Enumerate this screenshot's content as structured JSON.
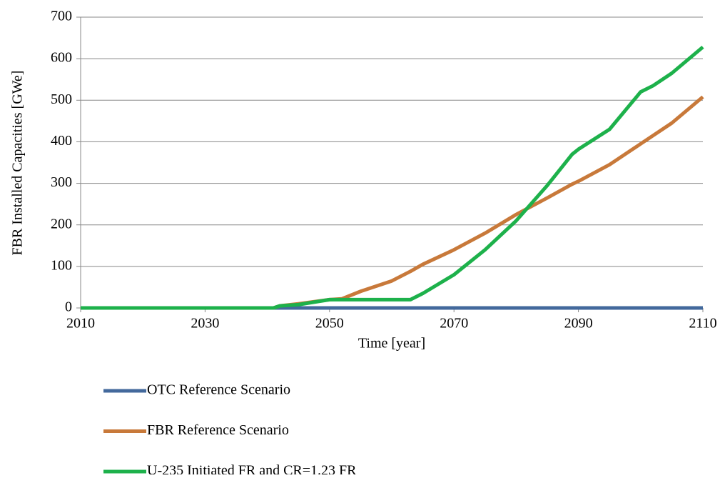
{
  "chart_data": {
    "type": "line",
    "ylabel": "FBR Installed Capacities [GWe]",
    "xlabel": "Time [year]",
    "x": [
      2010,
      2041,
      2042,
      2045,
      2050,
      2052,
      2055,
      2060,
      2063,
      2065,
      2070,
      2075,
      2080,
      2085,
      2089,
      2090,
      2095,
      2100,
      2102,
      2105,
      2110
    ],
    "series": [
      {
        "name": "OTC Reference Scenario",
        "color": "#43699c",
        "values": [
          0,
          0,
          0,
          0,
          0,
          0,
          0,
          0,
          0,
          0,
          0,
          0,
          0,
          0,
          0,
          0,
          0,
          0,
          0,
          0,
          0
        ]
      },
      {
        "name": "FBR Reference Scenario",
        "color": "#c8793a",
        "values": [
          0,
          0,
          5,
          10,
          20,
          22,
          40,
          65,
          88,
          105,
          140,
          180,
          225,
          265,
          298,
          305,
          345,
          395,
          415,
          445,
          508
        ]
      },
      {
        "name": "U-235 Initiated FR and CR=1.23 FR",
        "color": "#1db14b",
        "values": [
          0,
          0,
          5,
          8,
          20,
          20,
          20,
          20,
          20,
          35,
          80,
          140,
          210,
          295,
          370,
          382,
          430,
          520,
          535,
          565,
          628
        ]
      }
    ],
    "xlim": [
      2010,
      2110
    ],
    "xticks": [
      2010,
      2030,
      2050,
      2070,
      2090,
      2110
    ],
    "ylim": [
      0,
      700
    ],
    "yticks": [
      0,
      100,
      200,
      300,
      400,
      500,
      600,
      700
    ],
    "grid": true
  }
}
